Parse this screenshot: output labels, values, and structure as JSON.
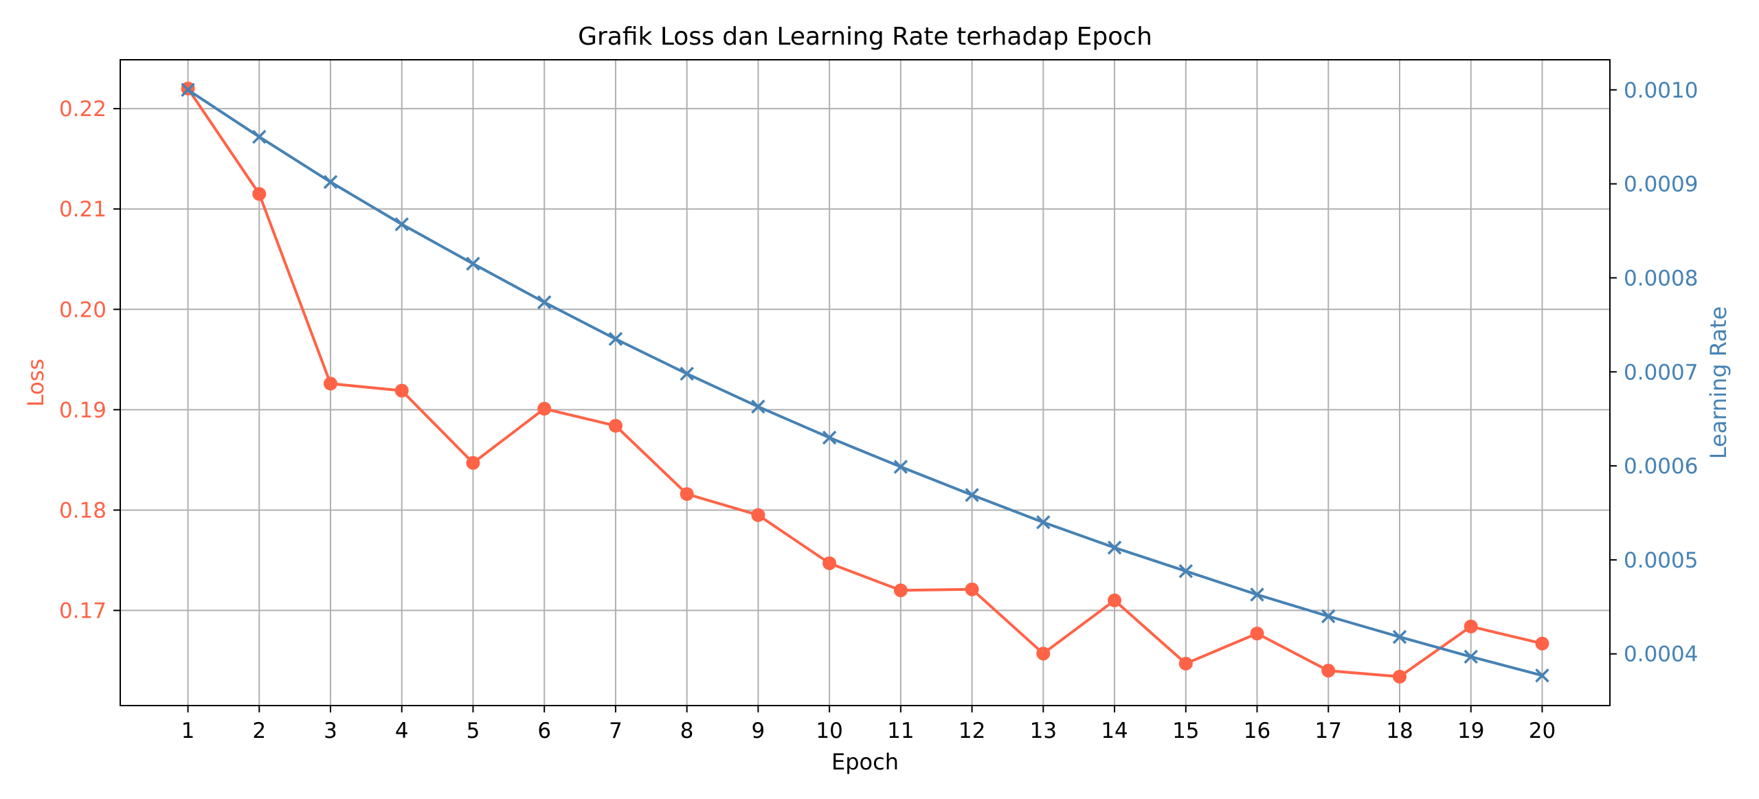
{
  "chart_data": {
    "type": "line",
    "title": "Grafik Loss dan Learning Rate terhadap Epoch",
    "xlabel": "Epoch",
    "x": [
      1,
      2,
      3,
      4,
      5,
      6,
      7,
      8,
      9,
      10,
      11,
      12,
      13,
      14,
      15,
      16,
      17,
      18,
      19,
      20
    ],
    "xlim": [
      0.05,
      20.95
    ],
    "grid": true,
    "axes": {
      "left": {
        "label": "Loss",
        "color": "#ff6347",
        "range": [
          0.16052,
          0.22487
        ],
        "ticks": [
          0.17,
          0.18,
          0.19,
          0.2,
          0.21,
          0.22
        ],
        "tick_labels": [
          "0.17",
          "0.18",
          "0.19",
          "0.20",
          "0.21",
          "0.22"
        ]
      },
      "right": {
        "label": "Learning Rate",
        "color": "#4682b4",
        "range": [
          0.000345,
          0.001032
        ],
        "ticks": [
          0.0004,
          0.0005,
          0.0006,
          0.0007,
          0.0008,
          0.0009,
          0.001
        ],
        "tick_labels": [
          "0.0004",
          "0.0005",
          "0.0006",
          "0.0007",
          "0.0008",
          "0.0009",
          "0.0010"
        ]
      }
    },
    "series": [
      {
        "axis": "left",
        "color": "#ff6347",
        "marker": "circle",
        "values": [
          0.222,
          0.2115,
          0.1926,
          0.1919,
          0.1847,
          0.1901,
          0.1884,
          0.1816,
          0.1795,
          0.1747,
          0.172,
          0.1721,
          0.1657,
          0.171,
          0.1647,
          0.1677,
          0.164,
          0.1634,
          0.1684,
          0.1667
        ]
      },
      {
        "axis": "right",
        "color": "#4682b4",
        "marker": "x",
        "values": [
          0.001,
          0.00095,
          0.000902,
          0.000857,
          0.000815,
          0.000774,
          0.000735,
          0.000698,
          0.000663,
          0.00063,
          0.000599,
          0.000569,
          0.00054,
          0.000513,
          0.000488,
          0.000463,
          0.00044,
          0.000418,
          0.000397,
          0.000377
        ]
      }
    ]
  }
}
